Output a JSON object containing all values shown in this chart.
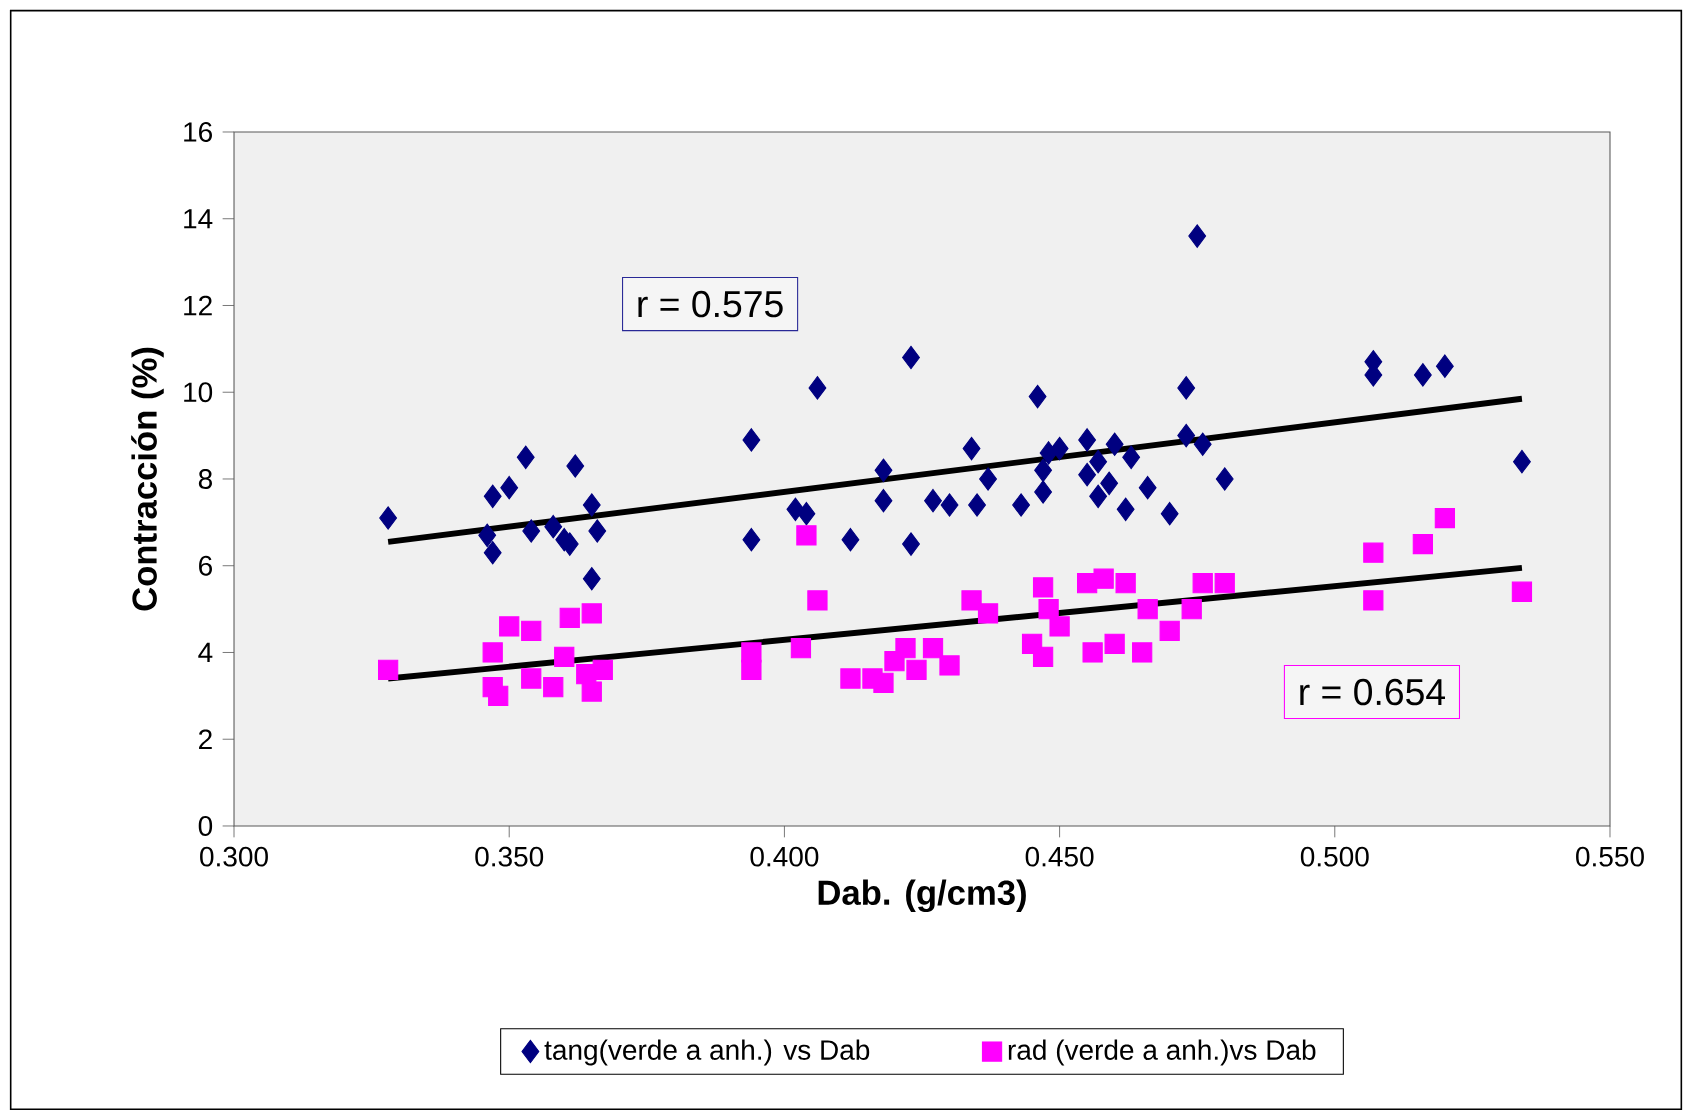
{
  "chart_data": {
    "type": "scatter",
    "xlabel": "Dab. (g/cm3)",
    "ylabel": "Contracción (%)",
    "xlim": [
      0.3,
      0.55
    ],
    "ylim": [
      0,
      16
    ],
    "xticks": [
      {
        "value": 0.3,
        "label": "0.300"
      },
      {
        "value": 0.35,
        "label": "0.350"
      },
      {
        "value": 0.4,
        "label": "0.400"
      },
      {
        "value": 0.45,
        "label": "0.450"
      },
      {
        "value": 0.5,
        "label": "0.500"
      },
      {
        "value": 0.55,
        "label": "0.550"
      }
    ],
    "yticks": [
      0,
      2,
      4,
      6,
      8,
      10,
      12,
      14,
      16
    ],
    "legend": "bottom",
    "annotations": [
      "r = 0.575",
      "r = 0.654"
    ],
    "series": [
      {
        "name": "tang(verde a anh.) vs Dab",
        "color": "#000080",
        "marker": "diamond",
        "x": [
          0.328,
          0.346,
          0.347,
          0.347,
          0.35,
          0.353,
          0.354,
          0.358,
          0.36,
          0.361,
          0.362,
          0.365,
          0.365,
          0.366,
          0.394,
          0.394,
          0.402,
          0.404,
          0.406,
          0.412,
          0.418,
          0.418,
          0.423,
          0.423,
          0.427,
          0.43,
          0.434,
          0.435,
          0.437,
          0.443,
          0.446,
          0.447,
          0.447,
          0.448,
          0.45,
          0.455,
          0.455,
          0.457,
          0.457,
          0.459,
          0.46,
          0.462,
          0.463,
          0.466,
          0.47,
          0.473,
          0.473,
          0.475,
          0.476,
          0.48,
          0.507,
          0.507,
          0.516,
          0.52,
          0.534
        ],
        "values": [
          7.1,
          6.7,
          6.3,
          7.6,
          7.8,
          8.5,
          6.8,
          6.9,
          6.6,
          6.5,
          8.3,
          7.4,
          5.7,
          6.8,
          8.9,
          6.6,
          7.3,
          7.2,
          10.1,
          6.6,
          7.5,
          8.2,
          6.5,
          10.8,
          7.5,
          7.4,
          8.7,
          7.4,
          8.0,
          7.4,
          9.9,
          7.7,
          8.2,
          8.6,
          8.7,
          8.9,
          8.1,
          7.6,
          8.4,
          7.9,
          8.8,
          7.3,
          8.5,
          7.8,
          7.2,
          10.1,
          9.0,
          13.6,
          8.8,
          8.0,
          10.4,
          10.7,
          10.4,
          10.6,
          8.4
        ]
      },
      {
        "name": "rad (verde a anh.)vs Dab",
        "color": "#ff00ff",
        "marker": "square",
        "x": [
          0.328,
          0.347,
          0.347,
          0.348,
          0.35,
          0.354,
          0.354,
          0.358,
          0.36,
          0.361,
          0.364,
          0.365,
          0.365,
          0.367,
          0.394,
          0.394,
          0.403,
          0.404,
          0.406,
          0.412,
          0.416,
          0.418,
          0.42,
          0.422,
          0.424,
          0.427,
          0.43,
          0.434,
          0.437,
          0.445,
          0.447,
          0.447,
          0.448,
          0.45,
          0.455,
          0.456,
          0.458,
          0.46,
          0.462,
          0.465,
          0.466,
          0.47,
          0.474,
          0.476,
          0.48,
          0.507,
          0.507,
          0.516,
          0.52,
          0.534
        ],
        "values": [
          3.6,
          4.0,
          3.2,
          3.0,
          4.6,
          4.5,
          3.4,
          3.2,
          3.9,
          4.8,
          3.5,
          4.9,
          3.1,
          3.6,
          4.0,
          3.6,
          4.1,
          6.7,
          5.2,
          3.4,
          3.4,
          3.3,
          3.8,
          4.1,
          3.6,
          4.1,
          3.7,
          5.2,
          4.9,
          4.2,
          5.5,
          3.9,
          5.0,
          4.6,
          5.6,
          4.0,
          5.7,
          4.2,
          5.6,
          4.0,
          5.0,
          4.5,
          5.0,
          5.6,
          5.6,
          6.3,
          5.2,
          6.5,
          7.1,
          5.4
        ]
      },
      {
        "type": "line",
        "color": "#000000",
        "marker": "none",
        "line_style": "solid",
        "x": [
          0.328,
          0.534
        ],
        "values": [
          6.55,
          9.85
        ]
      },
      {
        "type": "line",
        "color": "#000000",
        "marker": "none",
        "line_style": "solid",
        "x": [
          0.328,
          0.534
        ],
        "values": [
          3.4,
          5.95
        ]
      }
    ]
  }
}
